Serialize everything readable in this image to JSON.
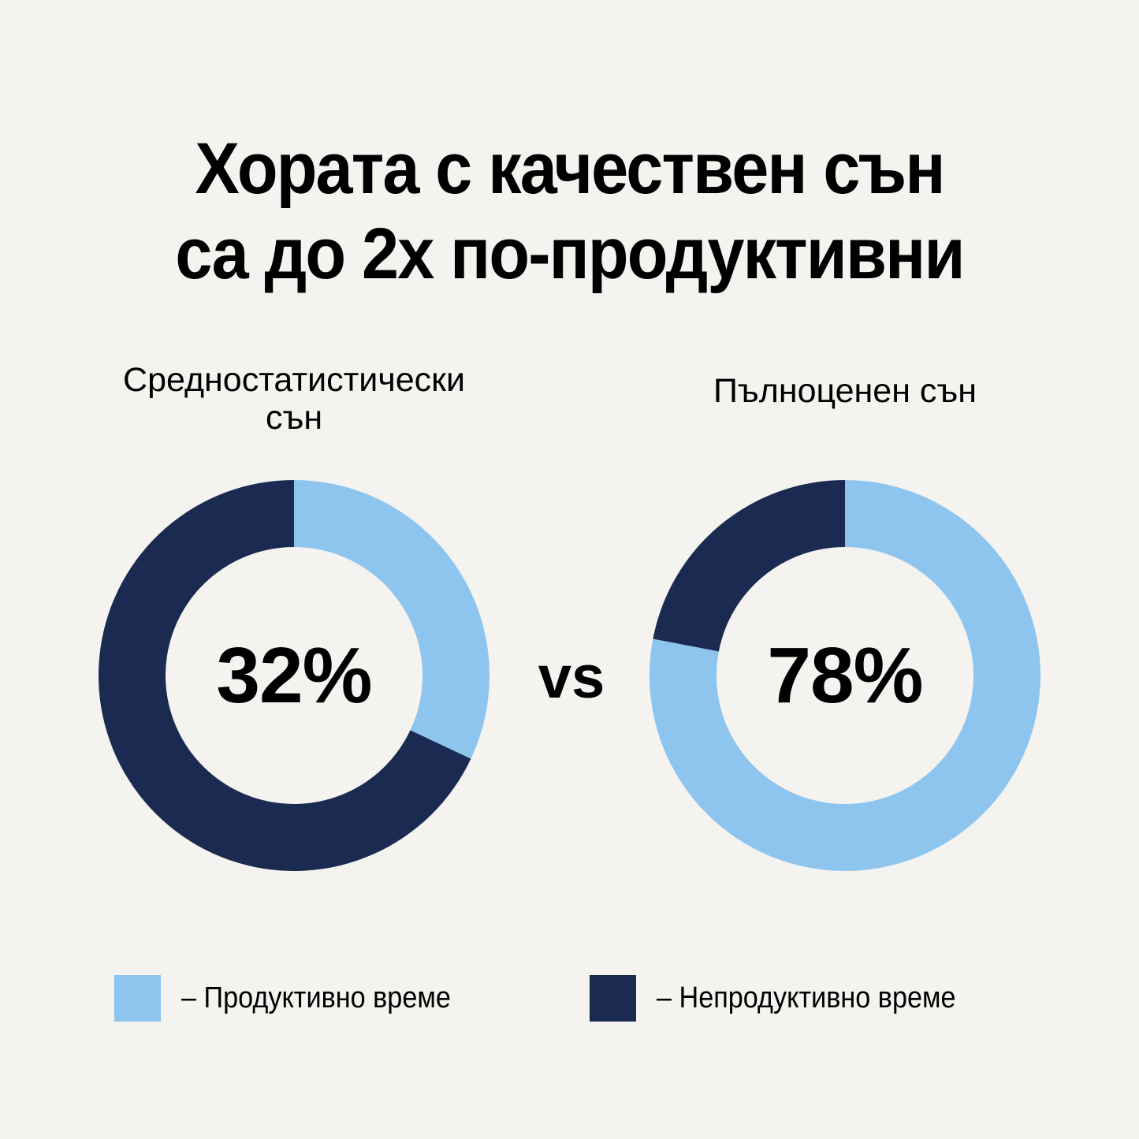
{
  "title": {
    "line1": "Хората с качествен сън",
    "line2": "са до 2x по-продуктивни"
  },
  "colors": {
    "productive": "#8ec5ef",
    "unproductive": "#1a2a50",
    "background": "#f4f3ef",
    "text": "#000000"
  },
  "left": {
    "label_line1": "Средностатистически",
    "label_line2": "сън",
    "value_text": "32%"
  },
  "right": {
    "label": "Пълноценен сън",
    "value_text": "78%"
  },
  "separator": "vs",
  "legend": {
    "items": [
      {
        "label": "– Продуктивно време",
        "color": "#8ec5ef"
      },
      {
        "label": "– Непродуктивно време",
        "color": "#1a2a50"
      }
    ]
  },
  "chart_data": [
    {
      "type": "pie",
      "subtype": "donut",
      "title": "Средностатистически сън",
      "center_label": "32%",
      "categories": [
        "Продуктивно време",
        "Непродуктивно време"
      ],
      "values": [
        32,
        68
      ],
      "colors": [
        "#8ec5ef",
        "#1a2a50"
      ],
      "start_angle": "top, clockwise",
      "legend_position": "bottom"
    },
    {
      "type": "pie",
      "subtype": "donut",
      "title": "Пълноценен сън",
      "center_label": "78%",
      "categories": [
        "Продуктивно време",
        "Непродуктивно време"
      ],
      "values": [
        78,
        22
      ],
      "colors": [
        "#8ec5ef",
        "#1a2a50"
      ],
      "start_angle": "top, clockwise",
      "legend_position": "bottom"
    }
  ]
}
